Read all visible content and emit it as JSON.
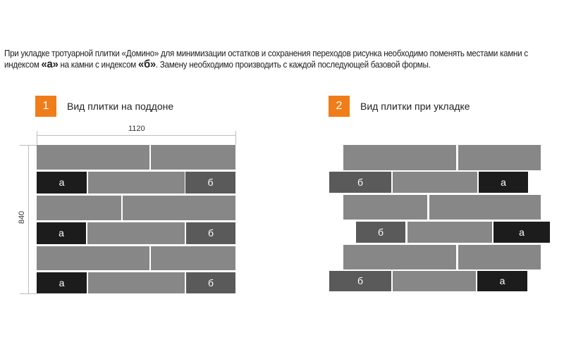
{
  "intro": {
    "part1": "При укладке тротуарной плитки «Домино» для минимизации остатков и сохранения переходов рисунка необходимо поменять местами камни с индексом ",
    "a_mark": "«а»",
    "part2": " на камни с индексом ",
    "b_mark": "«б»",
    "part3": ". Замену необходимо производить с каждой последующей базовой формы."
  },
  "sections": [
    {
      "number": "1",
      "caption": "Вид плитки на поддоне"
    },
    {
      "number": "2",
      "caption": "Вид плитки при укладке"
    }
  ],
  "dimensions": {
    "width": "1120",
    "height": "840"
  },
  "labels": {
    "a": "а",
    "b": "б"
  },
  "colors": {
    "accent": "#f07d1a",
    "tile": "#878787",
    "tile_a": "#1c1c1c",
    "tile_b": "#5a5a5a"
  }
}
